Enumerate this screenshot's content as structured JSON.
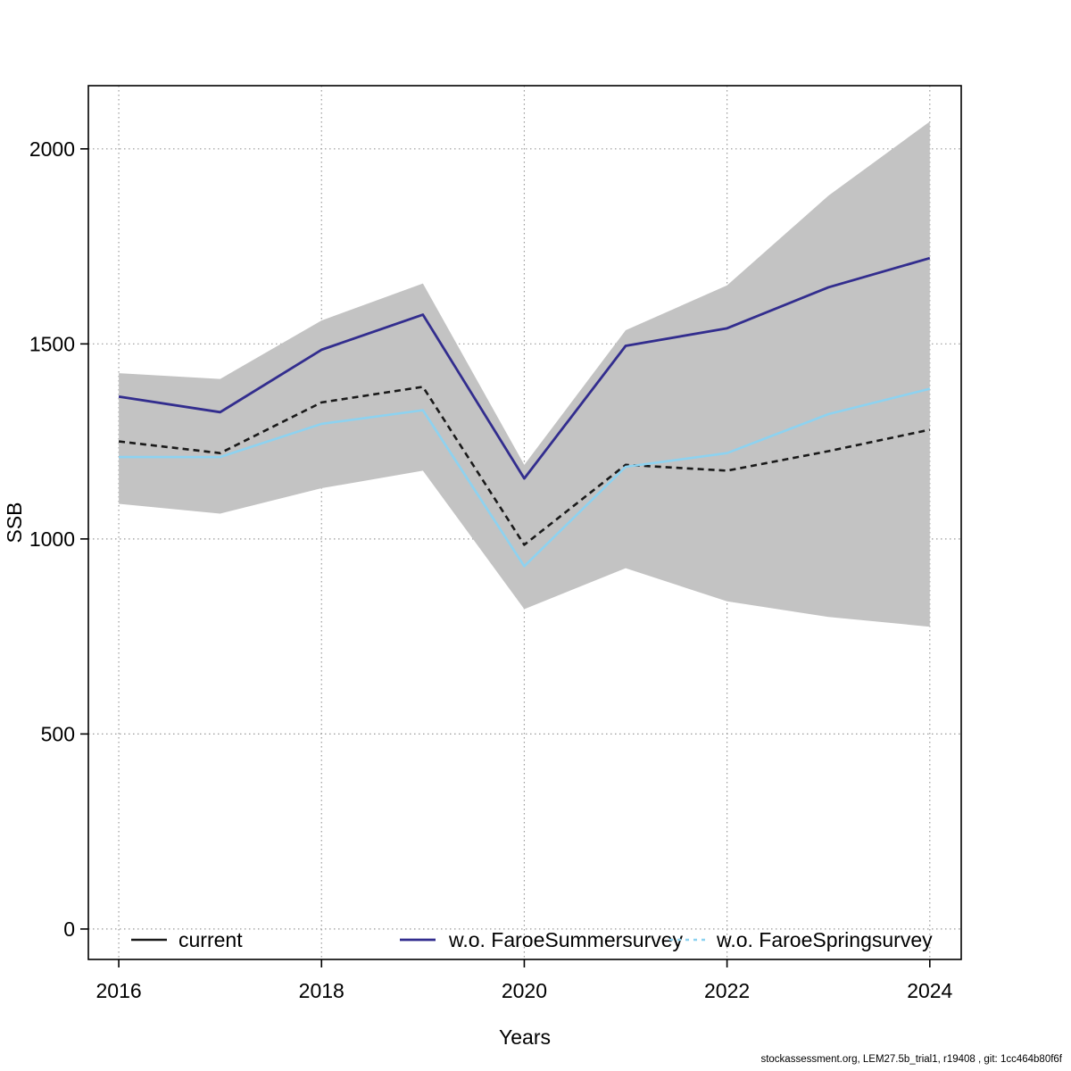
{
  "chart_data": {
    "type": "line",
    "title": "",
    "xlabel": "Years",
    "ylabel": "SSB",
    "x": [
      2016,
      2017,
      2018,
      2019,
      2020,
      2021,
      2022,
      2023,
      2024
    ],
    "xticks": [
      2016,
      2018,
      2020,
      2022,
      2024
    ],
    "yticks": [
      0,
      500,
      1000,
      1500,
      2000
    ],
    "xlim": [
      2015.7,
      2024.31
    ],
    "ylim": [
      -78,
      2162
    ],
    "grid": "dotted",
    "grid_color": "#9a9a9a",
    "legend_position": "bottom-inside",
    "band": {
      "name": "confidence-band",
      "color": "#c3c3c3",
      "upper": [
        1425,
        1410,
        1560,
        1655,
        1190,
        1535,
        1650,
        1880,
        2070
      ],
      "lower": [
        1090,
        1065,
        1130,
        1175,
        820,
        925,
        840,
        800,
        775
      ]
    },
    "series": [
      {
        "name": "current",
        "color": "#1a1a1a",
        "line_width": 2.6,
        "plot_style": "dashed",
        "legend_style": "solid",
        "values": [
          1250,
          1220,
          1350,
          1390,
          985,
          1190,
          1175,
          1225,
          1280
        ]
      },
      {
        "name": "w.o. FaroeSummersurvey",
        "color": "#322d8e",
        "line_width": 2.8,
        "plot_style": "solid",
        "legend_style": "solid",
        "values": [
          1365,
          1325,
          1485,
          1575,
          1155,
          1495,
          1540,
          1645,
          1720
        ]
      },
      {
        "name": "w.o. FaroeSpringsurvey",
        "color": "#8dd2f0",
        "line_width": 2.6,
        "plot_style": "solid",
        "legend_style": "dotted",
        "values": [
          1210,
          1210,
          1295,
          1330,
          930,
          1185,
          1220,
          1320,
          1385
        ]
      }
    ]
  },
  "footer": {
    "text": "stockassessment.org, LEM27.5b_trial1, r19408 , git: 1cc464b80f6f"
  }
}
